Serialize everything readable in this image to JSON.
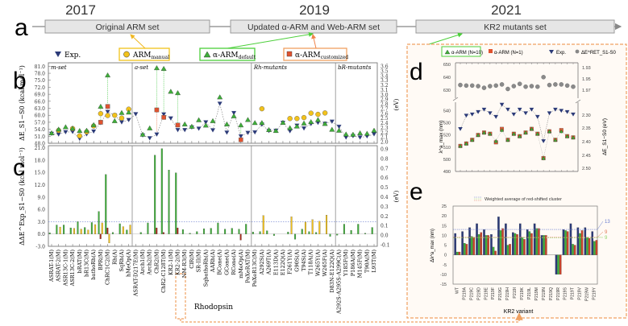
{
  "timeline": {
    "panel_label": "a",
    "stages": [
      {
        "year": "2017",
        "label": "Original ARM set"
      },
      {
        "year": "2019",
        "label": "Updated α-ARM and Web-ARM set"
      },
      {
        "year": "2021",
        "label": "KR2 mutants set"
      }
    ]
  },
  "legend_top": {
    "exp": "Exp.",
    "manual": "ARM",
    "manual_sub": "manual",
    "default": "α-ARM",
    "default_sub": "default",
    "customized": "α-ARM",
    "customized_sub": "customized"
  },
  "colors": {
    "exp": "#2b3a78",
    "manual": "#f2c21b",
    "default": "#3fae3a",
    "customized": "#e0532f",
    "dashed_box": "#f0a060",
    "panel_bg": "#fffaf5",
    "timeline_box": "#e6e6e6"
  },
  "chart_data": [
    {
      "id": "b",
      "panel_label": "b",
      "type": "scatter",
      "ylabel": "ΔE_S1−S0 (kcal mol⁻¹)",
      "ylabel_right": "(eV)",
      "ylim": [
        48.0,
        82.5
      ],
      "yticks": [
        "48.0",
        "51.0",
        "54.0",
        "57.0",
        "60.0",
        "63.0",
        "66.0",
        "69.0",
        "72.0",
        "75.0",
        "78.0",
        "81.0"
      ],
      "yticks_right": [
        "2.0",
        "2.1",
        "2.2",
        "2.3",
        "2.4",
        "2.5",
        "2.6",
        "2.7",
        "2.8",
        "2.9",
        "3.0",
        "3.1",
        "3.2",
        "3.3",
        "3.4",
        "3.5",
        "3.6"
      ],
      "sections": [
        {
          "label": "m-set",
          "start": 0
        },
        {
          "label": "a-set",
          "start": 12
        },
        {
          "label": "Rh-mutants",
          "start": 29
        },
        {
          "label": "bR-mutants",
          "start": 41
        }
      ],
      "categories": [
        "ASR_AT-1(M)",
        "ASR_AT-2(M)",
        "ASR_13C-1(M)",
        "ASR_13C-2(M)",
        "bR_AT(M)",
        "bR_13C(M)",
        "bathoRh(A)",
        "BPR(M)",
        "ChR_C1C2(M)",
        "Rh(A)",
        "SqRh(A)",
        "hMeOp(A)",
        "ASR_AT-D217E(M)",
        "Arch1(M)",
        "Arch2(M)",
        "ChR2(M)",
        "ChR2-C128T(M)",
        "KR2-1(M)",
        "KR2-2(M)",
        "NM-R3(M)",
        "ClR(M)",
        "SR-II(M)",
        "SqbathoRh(A)",
        "AARh(A)",
        "BCone(A)",
        "GCone(A)",
        "RCone(A)",
        "mMeOp(A)",
        "PoXeR_AT(M)",
        "PoXeR_13C(M)",
        "A292S(A)",
        "A269T(A)",
        "E113D(A)",
        "E122Q(A)",
        "F261Y(A)",
        "G90S(A)",
        "T94S(A)",
        "T118A(A)",
        "W265Y(A)",
        "W265F(A)",
        "D83N-E122Q(A)",
        "A292S-A295S-A299C(A)",
        "Y185F(M)",
        "P186A(M)",
        "M145F(M)",
        "T90A(M)",
        "L93T(M)"
      ],
      "series": [
        {
          "name": "Exp.",
          "values": [
            52.1,
            51.8,
            52.8,
            52.9,
            50.0,
            51.9,
            53.1,
            56.7,
            61.5,
            60.0,
            57.0,
            58.0,
            60.5,
            51.4,
            50.2,
            51.8,
            60.4,
            58.7,
            53.7,
            53.7,
            54.8,
            54.3,
            57.0,
            53.6,
            65.0,
            52.6,
            61.0,
            51.0,
            52.5,
            52.7,
            56.0,
            53.3,
            53.4,
            56.8,
            53.2,
            55.6,
            54.4,
            56.3,
            56.8,
            56.4,
            57.3,
            55.1,
            50.5,
            51.1,
            50.5,
            51.0,
            51.9
          ]
        },
        {
          "name": "ARM_manual",
          "values": [
            null,
            53.5,
            null,
            54.3,
            51.2,
            52.9,
            55.4,
            60.7,
            59.9,
            60.0,
            58.8,
            62.6,
            null,
            null,
            null,
            null,
            null,
            null,
            null,
            null,
            null,
            null,
            null,
            null,
            null,
            null,
            null,
            null,
            null,
            null,
            62.8,
            null,
            null,
            null,
            58.6,
            58.6,
            59.0,
            60.9,
            60.4,
            61.0,
            null,
            null,
            null,
            null,
            null,
            null,
            null
          ]
        },
        {
          "name": "α-ARM_default",
          "values": [
            52.4,
            54.0,
            55.0,
            54.4,
            53.4,
            53.5,
            55.9,
            63.8,
            77.2,
            57.6,
            61.1,
            61.3,
            null,
            51.8,
            54.5,
            80.3,
            80.0,
            70.2,
            69.6,
            56.2,
            55.2,
            58.0,
            55.7,
            57.6,
            67.8,
            56.2,
            59.7,
            55.8,
            58.1,
            56.8,
            56.8,
            53.8,
            53.4,
            56.9,
            54.6,
            55.3,
            56.6,
            57.2,
            58.1,
            56.4,
            53.9,
            53.5,
            51.9,
            51.8,
            52.4,
            52.2,
            53.5
          ]
        },
        {
          "name": "α-ARM_customized",
          "values": [
            null,
            null,
            null,
            null,
            null,
            null,
            null,
            57.0,
            63.8,
            null,
            null,
            null,
            null,
            null,
            null,
            62.3,
            59.1,
            null,
            55.8,
            null,
            null,
            null,
            null,
            null,
            null,
            null,
            null,
            49.5,
            null,
            null,
            null,
            null,
            null,
            null,
            null,
            null,
            null,
            null,
            null,
            null,
            null,
            null,
            null,
            null,
            null,
            null,
            null
          ]
        }
      ]
    },
    {
      "id": "c",
      "panel_label": "c",
      "type": "bar",
      "ylabel": "ΔΔE^Exp_S1−S0 (kcal mol⁻¹)",
      "ylabel_right": "(eV)",
      "ylim": [
        -3.0,
        21.5
      ],
      "yticks": [
        "-3.0",
        "0.0",
        "3.0",
        "6.0",
        "9.0",
        "12.0",
        "15.0",
        "18.0",
        "21.0"
      ],
      "yticks_right": [
        "-0.1",
        "0.0",
        "0.1",
        "0.2",
        "0.3",
        "0.4",
        "0.5",
        "0.6",
        "0.7",
        "0.8",
        "0.9"
      ],
      "threshold_line": 3.0,
      "xlabel": "Rhodopsin",
      "highlighted_category": "KR2-2(M)",
      "series": [
        {
          "name": "α-ARM_default",
          "values": [
            0.3,
            2.2,
            2.2,
            1.5,
            3.0,
            1.6,
            2.8,
            5.5,
            14.5,
            0.4,
            2.5,
            1.0,
            0.0,
            0.4,
            2.7,
            19.2,
            20.8,
            15.6,
            14.9,
            1.1,
            0.2,
            0.6,
            1.3,
            1.4,
            2.7,
            1.2,
            1.4,
            1.2,
            2.4,
            0.5,
            0.6,
            0.8,
            -0.4,
            0.0,
            0.5,
            -1.3,
            1.2,
            0.6,
            0.4,
            0.0,
            -0.6,
            -0.3,
            2.4,
            0.9,
            2.4,
            0.2,
            1.6
          ]
        },
        {
          "name": "α-ARM_customized",
          "values": [
            0,
            0,
            0,
            0,
            0,
            0,
            0,
            -1.2,
            1.5,
            0,
            0,
            0,
            0,
            0,
            0,
            1.5,
            0.4,
            0,
            1.5,
            0,
            0,
            0,
            0,
            0,
            0,
            0,
            0,
            -1.5,
            0,
            0,
            0,
            0,
            0,
            0,
            0,
            0,
            0,
            0,
            0,
            0,
            0,
            0,
            0,
            0,
            0,
            0,
            0
          ]
        },
        {
          "name": "ARM_manual",
          "values": [
            0,
            1.7,
            0,
            1.4,
            1.2,
            1.0,
            2.3,
            2.7,
            -2.2,
            0,
            1.8,
            2.2,
            0,
            0,
            0,
            0,
            0,
            0,
            0,
            0,
            0,
            0,
            0,
            0,
            0,
            0,
            0,
            0,
            0,
            0,
            4.5,
            0,
            0,
            0,
            4.2,
            0,
            2.9,
            3.5,
            3.1,
            4.6,
            0,
            0,
            0,
            0,
            0,
            0,
            0
          ]
        }
      ]
    },
    {
      "id": "d",
      "panel_label": "d",
      "type": "scatter",
      "legend": [
        "α-ARM (N=10)",
        "α-ARM (N=1)",
        "Exp.",
        "ΔE^RET_S1-S0"
      ],
      "ylabel": "λ^a_max (nm)",
      "ylabel_right": "ΔE_S1−S0 (eV)",
      "ylim": [
        490,
        650
      ],
      "yticks": [
        "490",
        "500",
        "510",
        "520",
        "530",
        "540",
        "630",
        "640",
        "650"
      ],
      "yticks_right": [
        "1.93",
        "1.95",
        "1.97",
        "2.30",
        "2.35",
        "2.40",
        "2.45",
        "2.50"
      ],
      "axis_break": true,
      "categories": [
        "WT",
        "P219A",
        "P219C",
        "P219D",
        "P219E",
        "P219F",
        "P219G",
        "P219H",
        "P219I",
        "P219K",
        "P219L",
        "P219M",
        "P219N",
        "P219Q",
        "P219R",
        "P219S",
        "P219T",
        "P219V",
        "P219W",
        "P219Y"
      ],
      "series": [
        {
          "name": "Exp.",
          "values": [
            525,
            536,
            537,
            539,
            541,
            538,
            535,
            545,
            541,
            537,
            541,
            538,
            541,
            535,
            515,
            538,
            541,
            540,
            539,
            537
          ]
        },
        {
          "name": "α-ARM (N=10)",
          "values": [
            511,
            513,
            516,
            520,
            522,
            521,
            515,
            524,
            516,
            521,
            519,
            522,
            525,
            521,
            501,
            523,
            516,
            523,
            519,
            518
          ]
        },
        {
          "name": "α-ARM (N=1)",
          "values": [
            511,
            513,
            516,
            520,
            522,
            521,
            514,
            525,
            516,
            521,
            519,
            522,
            525,
            521,
            501,
            523,
            516,
            524,
            519,
            518
          ]
        },
        {
          "name": "ΔE^RET_S1-S0 (eV)",
          "values": [
            1.958,
            1.959,
            1.959,
            1.96,
            1.963,
            1.96,
            1.959,
            1.957,
            1.965,
            1.96,
            1.956,
            1.961,
            1.96,
            1.961,
            1.944,
            1.958,
            1.957,
            1.957,
            1.959,
            1.961
          ]
        }
      ]
    },
    {
      "id": "e",
      "panel_label": "e",
      "type": "bar",
      "legend": [
        "Weighted average of red-shifted cluster"
      ],
      "ylabel": "Δλ^a_max (nm)",
      "xlabel": "KR2 variant",
      "ylim": [
        -15,
        25
      ],
      "yticks": [
        "-15",
        "-10",
        "-5",
        "0",
        "5",
        "10",
        "15",
        "20",
        "25"
      ],
      "categories": [
        "WT",
        "P219A",
        "P219C",
        "P219D",
        "P219E",
        "P219F",
        "P219G",
        "P219H",
        "P219I",
        "P219K",
        "P219L",
        "P219M",
        "P219N",
        "P219Q",
        "P219R",
        "P219S",
        "P219T",
        "P219V",
        "P219W",
        "P219Y"
      ],
      "reference_lines": [
        {
          "series": "Exp.",
          "value": 13,
          "label": "13"
        },
        {
          "series": "α-ARM (N=1)",
          "value": 9,
          "label": "9"
        },
        {
          "series": "α-ARM (N=10)",
          "value": 9,
          "label": "9"
        }
      ],
      "series": [
        {
          "name": "Exp.",
          "values": [
            11,
            12,
            14,
            16,
            13,
            10.5,
            19.5,
            16,
            11.5,
            16,
            13,
            16,
            10,
            null,
            -10,
            13,
            16,
            14,
            14,
            12
          ]
        },
        {
          "name": "α-ARM (N=10)",
          "values": [
            1.5,
            6,
            9.5,
            10.5,
            10,
            4,
            12.5,
            5,
            11,
            9,
            12,
            13.5,
            10,
            null,
            -10,
            12.5,
            5.5,
            11,
            9,
            7
          ]
        },
        {
          "name": "α-ARM (N=1)",
          "values": [
            1.5,
            5.5,
            9,
            11.5,
            10,
            2,
            13.5,
            5.5,
            10.5,
            8,
            11,
            13.5,
            10,
            null,
            -10,
            12,
            5,
            12.5,
            8.5,
            7.5
          ]
        }
      ]
    }
  ]
}
